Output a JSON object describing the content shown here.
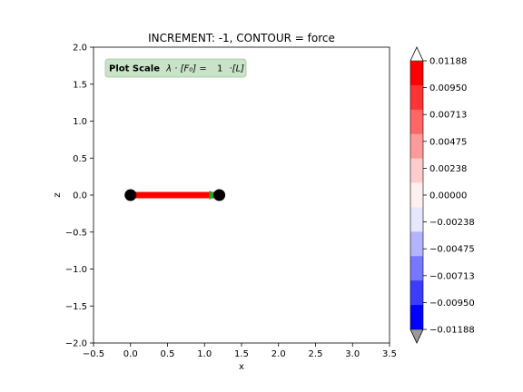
{
  "chart_data": {
    "type": "line",
    "title": "INCREMENT: -1, CONTOUR = force",
    "xlabel": "x",
    "ylabel": "z",
    "xlim": [
      -0.5,
      3.5
    ],
    "ylim": [
      -2.0,
      2.0
    ],
    "xticks": [
      "−0.5",
      "0.0",
      "0.5",
      "1.0",
      "1.5",
      "2.0",
      "2.5",
      "3.0",
      "3.5"
    ],
    "xtick_values": [
      -0.5,
      0.0,
      0.5,
      1.0,
      1.5,
      2.0,
      2.5,
      3.0,
      3.5
    ],
    "yticks": [
      "−2.0",
      "−1.5",
      "−1.0",
      "−0.5",
      "0.0",
      "0.5",
      "1.0",
      "1.5",
      "2.0"
    ],
    "ytick_values": [
      -2.0,
      -1.5,
      -1.0,
      -0.5,
      0.0,
      0.5,
      1.0,
      1.5,
      2.0
    ],
    "grid": false,
    "annotation": {
      "bold": "Plot Scale",
      "formula": "λ · [F₀] =",
      "value": "1",
      "unit": "·[L]"
    },
    "nodes": [
      {
        "x": 0.0,
        "z": 0.0
      },
      {
        "x": 1.2,
        "z": 0.0
      }
    ],
    "element": {
      "from": 0,
      "to": 1,
      "color": "#ff0000"
    },
    "load_arrow": {
      "x": 1.2,
      "z": 0.0,
      "direction": "+x",
      "color": "#2ca02c"
    },
    "colorbar": {
      "ticks": [
        "0.01188",
        "0.00950",
        "0.00713",
        "0.00475",
        "0.00238",
        "0.00000",
        "−0.00238",
        "−0.00475",
        "−0.00713",
        "−0.00950",
        "−0.01188"
      ],
      "tick_values": [
        0.01188,
        0.0095,
        0.00713,
        0.00475,
        0.00238,
        0.0,
        -0.00238,
        -0.00475,
        -0.00713,
        -0.0095,
        -0.01188
      ],
      "colors_top_to_bottom": [
        "#ff0000",
        "#ff3333",
        "#ff6666",
        "#ff9a9a",
        "#ffcccc",
        "#fff0f0",
        "#e6e6ff",
        "#b3b3ff",
        "#7777ff",
        "#3c3cff",
        "#0000ff"
      ],
      "extend_over": "#ffffff",
      "extend_under": "#9a9a9a"
    }
  }
}
